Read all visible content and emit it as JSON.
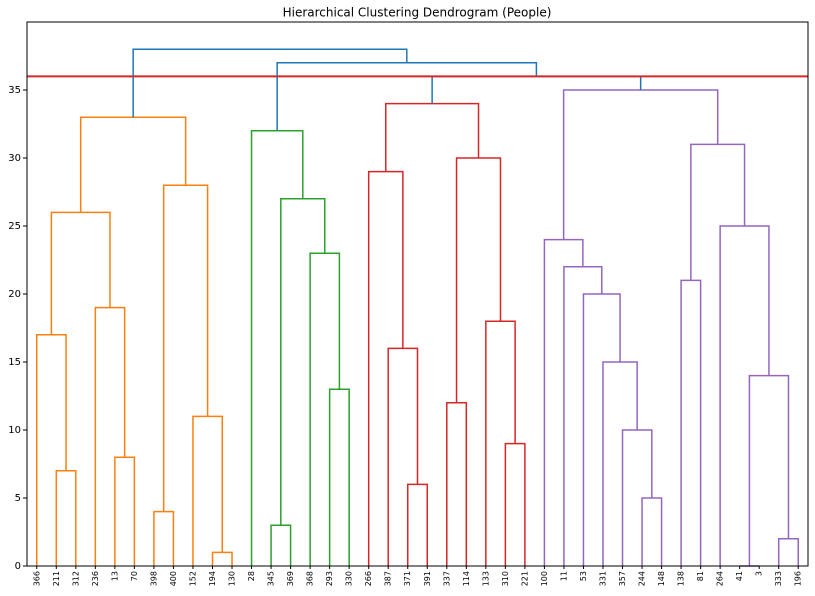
{
  "chart_data": {
    "type": "dendrogram",
    "title": "Hierarchical Clustering Dendrogram (People)",
    "leaves": [
      "366",
      "211",
      "312",
      "236",
      "13",
      "70",
      "398",
      "400",
      "152",
      "194",
      "130",
      "28",
      "345",
      "369",
      "368",
      "293",
      "330",
      "266",
      "387",
      "371",
      "391",
      "337",
      "114",
      "133",
      "310",
      "221",
      "100",
      "11",
      "53",
      "331",
      "357",
      "244",
      "148",
      "138",
      "81",
      "264",
      "41",
      "3",
      "333",
      "196"
    ],
    "links": [
      {
        "children": [
          1,
          2
        ],
        "height": 7,
        "color": "#ff7f0e"
      },
      {
        "children": [
          0,
          40
        ],
        "height": 17,
        "color": "#ff7f0e"
      },
      {
        "children": [
          4,
          5
        ],
        "height": 8,
        "color": "#ff7f0e"
      },
      {
        "children": [
          3,
          42
        ],
        "height": 19,
        "color": "#ff7f0e"
      },
      {
        "children": [
          41,
          43
        ],
        "height": 26,
        "color": "#ff7f0e"
      },
      {
        "children": [
          6,
          7
        ],
        "height": 4,
        "color": "#ff7f0e"
      },
      {
        "children": [
          9,
          10
        ],
        "height": 1,
        "color": "#ff7f0e"
      },
      {
        "children": [
          8,
          46
        ],
        "height": 11,
        "color": "#ff7f0e"
      },
      {
        "children": [
          45,
          47
        ],
        "height": 28,
        "color": "#ff7f0e"
      },
      {
        "children": [
          44,
          48
        ],
        "height": 33,
        "color": "#ff7f0e"
      },
      {
        "children": [
          12,
          13
        ],
        "height": 3,
        "color": "#2ca02c"
      },
      {
        "children": [
          15,
          16
        ],
        "height": 13,
        "color": "#2ca02c"
      },
      {
        "children": [
          14,
          51
        ],
        "height": 23,
        "color": "#2ca02c"
      },
      {
        "children": [
          50,
          52
        ],
        "height": 27,
        "color": "#2ca02c"
      },
      {
        "children": [
          11,
          53
        ],
        "height": 32,
        "color": "#2ca02c"
      },
      {
        "children": [
          19,
          20
        ],
        "height": 6,
        "color": "#d62728"
      },
      {
        "children": [
          18,
          55
        ],
        "height": 16,
        "color": "#d62728"
      },
      {
        "children": [
          17,
          56
        ],
        "height": 29,
        "color": "#d62728"
      },
      {
        "children": [
          21,
          22
        ],
        "height": 12,
        "color": "#d62728"
      },
      {
        "children": [
          24,
          25
        ],
        "height": 9,
        "color": "#d62728"
      },
      {
        "children": [
          23,
          59
        ],
        "height": 18,
        "color": "#d62728"
      },
      {
        "children": [
          58,
          60
        ],
        "height": 30,
        "color": "#d62728"
      },
      {
        "children": [
          57,
          61
        ],
        "height": 34,
        "color": "#d62728"
      },
      {
        "children": [
          31,
          32
        ],
        "height": 5,
        "color": "#9467bd"
      },
      {
        "children": [
          30,
          63
        ],
        "height": 10,
        "color": "#9467bd"
      },
      {
        "children": [
          29,
          64
        ],
        "height": 15,
        "color": "#9467bd"
      },
      {
        "children": [
          28,
          65
        ],
        "height": 20,
        "color": "#9467bd"
      },
      {
        "children": [
          27,
          66
        ],
        "height": 22,
        "color": "#9467bd"
      },
      {
        "children": [
          26,
          67
        ],
        "height": 24,
        "color": "#9467bd"
      },
      {
        "children": [
          33,
          34
        ],
        "height": 21,
        "color": "#9467bd"
      },
      {
        "children": [
          36,
          37
        ],
        "height": 0,
        "color": "#9467bd"
      },
      {
        "children": [
          38,
          39
        ],
        "height": 2,
        "color": "#9467bd"
      },
      {
        "children": [
          70,
          71
        ],
        "height": 14,
        "color": "#9467bd"
      },
      {
        "children": [
          35,
          72
        ],
        "height": 25,
        "color": "#9467bd"
      },
      {
        "children": [
          69,
          73
        ],
        "height": 31,
        "color": "#9467bd"
      },
      {
        "children": [
          68,
          74
        ],
        "height": 35,
        "color": "#9467bd"
      },
      {
        "children": [
          62,
          75
        ],
        "height": 36,
        "color": "#1f77b4"
      },
      {
        "children": [
          54,
          76
        ],
        "height": 37,
        "color": "#1f77b4"
      },
      {
        "children": [
          49,
          77
        ],
        "height": 38,
        "color": "#1f77b4"
      }
    ],
    "threshold": 36,
    "threshold_color": "#d62728",
    "ylim": [
      0,
      40
    ],
    "yticks": [
      0,
      5,
      10,
      15,
      20,
      25,
      30,
      35
    ]
  }
}
